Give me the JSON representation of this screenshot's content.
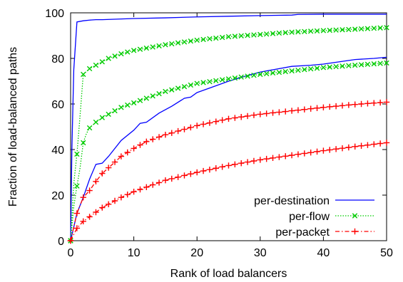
{
  "chart_data": {
    "type": "line",
    "xlabel": "Rank of load balancers",
    "ylabel": "Fraction of load-balanced paths",
    "xlim": [
      0,
      50
    ],
    "ylim": [
      0,
      100
    ],
    "xticks": [
      0,
      10,
      20,
      30,
      40,
      50
    ],
    "yticks": [
      0,
      20,
      40,
      60,
      80,
      100
    ],
    "grid": false,
    "legend_position": "bottom-right",
    "colors": {
      "per-destination": "#0000ff",
      "per-flow": "#00cc00",
      "per-packet": "#ff0000"
    },
    "series": [
      {
        "name": "per-destination",
        "style": "solid",
        "marker": "none",
        "curves": [
          {
            "x": [
              0,
              0.2,
              0.5,
              1,
              2,
              3,
              4,
              5,
              10,
              15,
              20,
              25,
              30,
              35,
              36,
              40,
              45,
              50
            ],
            "y": [
              0,
              40,
              75,
              96,
              96.5,
              96.8,
              97,
              97,
              97.5,
              97.8,
              98.2,
              98.5,
              98.8,
              99,
              99.3,
              99.4,
              99.4,
              99.4
            ]
          },
          {
            "x": [
              0,
              1,
              2,
              3,
              4,
              5,
              6,
              8,
              10,
              11,
              12,
              14,
              16,
              18,
              19,
              20,
              22,
              25,
              28,
              30,
              32,
              35,
              38,
              40,
              45,
              48,
              50
            ],
            "y": [
              0,
              12,
              19,
              27,
              33.5,
              34,
              37,
              44,
              48.5,
              51.5,
              52,
              56,
              59,
              62.5,
              63,
              65,
              67,
              70,
              72.5,
              74,
              75,
              76.5,
              77,
              77.5,
              79.5,
              80,
              80.5
            ]
          }
        ]
      },
      {
        "name": "per-flow",
        "style": "dotted",
        "marker": "x",
        "curves": [
          {
            "x": [
              0,
              0.5,
              1,
              1.5,
              2,
              3,
              4,
              5,
              6,
              7,
              8,
              9,
              10,
              12,
              15,
              20,
              25,
              30,
              35,
              40,
              45,
              50
            ],
            "y": [
              0,
              25,
              38,
              55,
              73,
              75.5,
              77,
              78.5,
              80,
              81,
              82,
              82.8,
              83.5,
              84.5,
              86,
              88,
              89.5,
              90.5,
              91.5,
              92.2,
              92.8,
              93.5
            ]
          },
          {
            "x": [
              0,
              0.5,
              1,
              1.5,
              2,
              2.5,
              3,
              4,
              5,
              6,
              7,
              8,
              10,
              12,
              15,
              20,
              25,
              30,
              35,
              40,
              45,
              50
            ],
            "y": [
              0,
              15,
              24,
              32,
              43,
              47,
              49.5,
              52,
              54,
              55.5,
              57,
              58.5,
              60.5,
              62.5,
              65.5,
              69,
              71,
              73,
              74.5,
              76,
              77,
              78
            ]
          }
        ]
      },
      {
        "name": "per-packet",
        "style": "dashdot",
        "marker": "+",
        "curves": [
          {
            "x": [
              0,
              1,
              2,
              3,
              4,
              5,
              6,
              8,
              10,
              12,
              15,
              20,
              25,
              30,
              35,
              40,
              45,
              50
            ],
            "y": [
              0,
              12,
              19,
              22,
              26,
              29.5,
              32,
              37,
              40.5,
              43.5,
              46.5,
              50.5,
              53.5,
              55.5,
              57,
              58.5,
              59.8,
              60.8
            ]
          },
          {
            "x": [
              0,
              1,
              2,
              3,
              4,
              5,
              6,
              8,
              10,
              12,
              15,
              20,
              25,
              30,
              35,
              40,
              45,
              50
            ],
            "y": [
              0,
              5.5,
              8.5,
              10.5,
              12.5,
              14.5,
              16,
              19,
              21.5,
              23.5,
              26.5,
              30,
              33,
              35.5,
              37.5,
              39.5,
              41.3,
              43
            ]
          }
        ]
      }
    ]
  }
}
